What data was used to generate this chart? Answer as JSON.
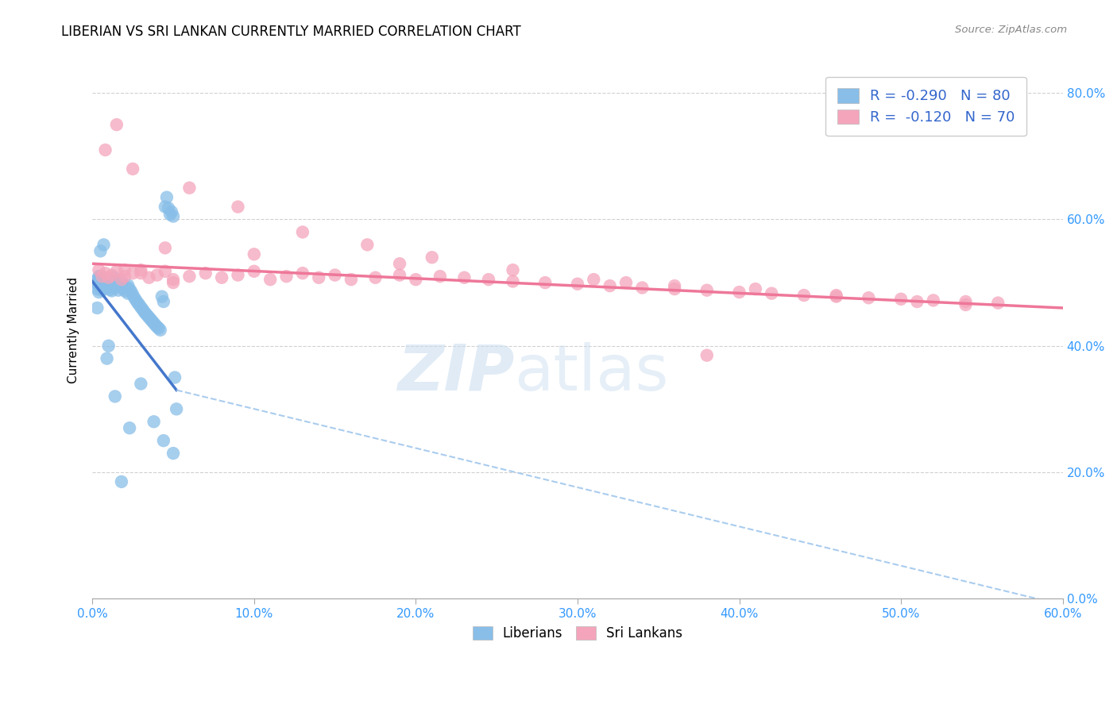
{
  "title": "LIBERIAN VS SRI LANKAN CURRENTLY MARRIED CORRELATION CHART",
  "source": "Source: ZipAtlas.com",
  "ylabel": "Currently Married",
  "blue_color": "#88BEE8",
  "pink_color": "#F4A5BB",
  "blue_line_color": "#4477CC",
  "pink_line_color": "#EE7799",
  "dashed_line_color": "#AACCEE",
  "legend_blue_label": "R = -0.290   N = 80",
  "legend_pink_label": "R =  -0.120   N = 70",
  "xlim": [
    0.0,
    0.6
  ],
  "ylim": [
    0.0,
    0.85
  ],
  "blue_line_x0": 0.0,
  "blue_line_y0": 0.502,
  "blue_line_x1": 0.052,
  "blue_line_y1": 0.33,
  "dashed_line_x0": 0.052,
  "dashed_line_y0": 0.33,
  "dashed_line_x1": 0.6,
  "dashed_line_y1": -0.01,
  "pink_line_x0": 0.0,
  "pink_line_y0": 0.53,
  "pink_line_x1": 0.6,
  "pink_line_y1": 0.46,
  "liberian_x": [
    0.002,
    0.003,
    0.003,
    0.004,
    0.004,
    0.004,
    0.005,
    0.005,
    0.005,
    0.006,
    0.006,
    0.006,
    0.007,
    0.007,
    0.007,
    0.008,
    0.008,
    0.009,
    0.009,
    0.01,
    0.01,
    0.011,
    0.011,
    0.012,
    0.012,
    0.013,
    0.013,
    0.014,
    0.015,
    0.015,
    0.016,
    0.017,
    0.018,
    0.019,
    0.02,
    0.021,
    0.022,
    0.022,
    0.023,
    0.024,
    0.025,
    0.026,
    0.027,
    0.028,
    0.029,
    0.03,
    0.031,
    0.032,
    0.033,
    0.034,
    0.035,
    0.036,
    0.037,
    0.038,
    0.039,
    0.04,
    0.041,
    0.042,
    0.043,
    0.044,
    0.045,
    0.046,
    0.047,
    0.048,
    0.049,
    0.05,
    0.051,
    0.052,
    0.023,
    0.018,
    0.01,
    0.005,
    0.007,
    0.003,
    0.009,
    0.014,
    0.03,
    0.038,
    0.044,
    0.05
  ],
  "liberian_y": [
    0.5,
    0.49,
    0.505,
    0.495,
    0.51,
    0.485,
    0.5,
    0.51,
    0.498,
    0.492,
    0.506,
    0.488,
    0.502,
    0.495,
    0.508,
    0.496,
    0.503,
    0.491,
    0.507,
    0.494,
    0.504,
    0.489,
    0.497,
    0.503,
    0.487,
    0.499,
    0.509,
    0.493,
    0.501,
    0.496,
    0.488,
    0.497,
    0.502,
    0.491,
    0.487,
    0.493,
    0.496,
    0.483,
    0.49,
    0.486,
    0.481,
    0.476,
    0.472,
    0.468,
    0.465,
    0.461,
    0.458,
    0.454,
    0.451,
    0.448,
    0.445,
    0.442,
    0.439,
    0.436,
    0.433,
    0.43,
    0.428,
    0.425,
    0.478,
    0.47,
    0.62,
    0.635,
    0.618,
    0.608,
    0.612,
    0.605,
    0.35,
    0.3,
    0.27,
    0.185,
    0.4,
    0.55,
    0.56,
    0.46,
    0.38,
    0.32,
    0.34,
    0.28,
    0.25,
    0.23
  ],
  "srilankan_x": [
    0.004,
    0.006,
    0.008,
    0.01,
    0.012,
    0.015,
    0.018,
    0.02,
    0.025,
    0.03,
    0.035,
    0.04,
    0.045,
    0.05,
    0.06,
    0.07,
    0.08,
    0.09,
    0.1,
    0.11,
    0.12,
    0.13,
    0.14,
    0.15,
    0.16,
    0.175,
    0.19,
    0.2,
    0.215,
    0.23,
    0.245,
    0.26,
    0.28,
    0.3,
    0.32,
    0.34,
    0.36,
    0.38,
    0.4,
    0.42,
    0.44,
    0.46,
    0.48,
    0.5,
    0.52,
    0.54,
    0.56,
    0.05,
    0.03,
    0.02,
    0.015,
    0.025,
    0.06,
    0.09,
    0.13,
    0.17,
    0.21,
    0.26,
    0.31,
    0.36,
    0.41,
    0.46,
    0.51,
    0.008,
    0.045,
    0.1,
    0.19,
    0.33,
    0.54,
    0.38
  ],
  "srilankan_y": [
    0.52,
    0.51,
    0.515,
    0.508,
    0.512,
    0.518,
    0.505,
    0.51,
    0.515,
    0.52,
    0.508,
    0.512,
    0.518,
    0.505,
    0.51,
    0.515,
    0.508,
    0.512,
    0.518,
    0.505,
    0.51,
    0.515,
    0.508,
    0.512,
    0.505,
    0.508,
    0.512,
    0.505,
    0.51,
    0.508,
    0.505,
    0.502,
    0.5,
    0.498,
    0.495,
    0.492,
    0.49,
    0.488,
    0.485,
    0.483,
    0.48,
    0.478,
    0.476,
    0.474,
    0.472,
    0.47,
    0.468,
    0.5,
    0.515,
    0.52,
    0.75,
    0.68,
    0.65,
    0.62,
    0.58,
    0.56,
    0.54,
    0.52,
    0.505,
    0.495,
    0.49,
    0.48,
    0.47,
    0.71,
    0.555,
    0.545,
    0.53,
    0.5,
    0.465,
    0.385
  ]
}
